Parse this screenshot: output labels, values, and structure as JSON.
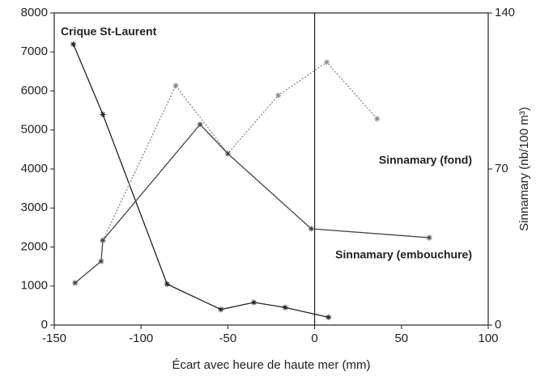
{
  "chart_data": {
    "type": "line",
    "x_label": "Écart avec heure de haute mer (mm)",
    "y2_label": "Sinnamary (nb/100 m³)",
    "xlim": [
      -150,
      100
    ],
    "xticks": [
      -150,
      -100,
      -50,
      0,
      50,
      100
    ],
    "ylim": [
      0,
      8000
    ],
    "yticks": [
      0,
      1000,
      2000,
      3000,
      4000,
      5000,
      6000,
      7000,
      8000
    ],
    "y2lim": [
      0,
      140
    ],
    "y2ticks": [
      0,
      70,
      140
    ],
    "reference_line_x": 0,
    "series": [
      {
        "name": "Crique St-Laurent",
        "color": "#222222",
        "x": [
          -139,
          -122,
          -85,
          -54,
          -35,
          -17,
          8
        ],
        "values": [
          7200,
          5400,
          1050,
          400,
          580,
          450,
          200
        ]
      },
      {
        "name": "Sinnamary (fond)",
        "color": "#888888",
        "axis": "y2",
        "x": [
          -122,
          -80,
          -50,
          -21,
          7,
          36
        ],
        "values": [
          38,
          107.4,
          76.9,
          103,
          117.9,
          92.5
        ]
      },
      {
        "name": "Sinnamary (embouchure)",
        "color": "#444444",
        "axis": "y2",
        "x": [
          -138,
          -123,
          -122,
          -66,
          -50,
          -2,
          66
        ],
        "values": [
          18.9,
          28.6,
          38,
          90,
          76.9,
          43.2,
          39.2
        ]
      }
    ]
  }
}
